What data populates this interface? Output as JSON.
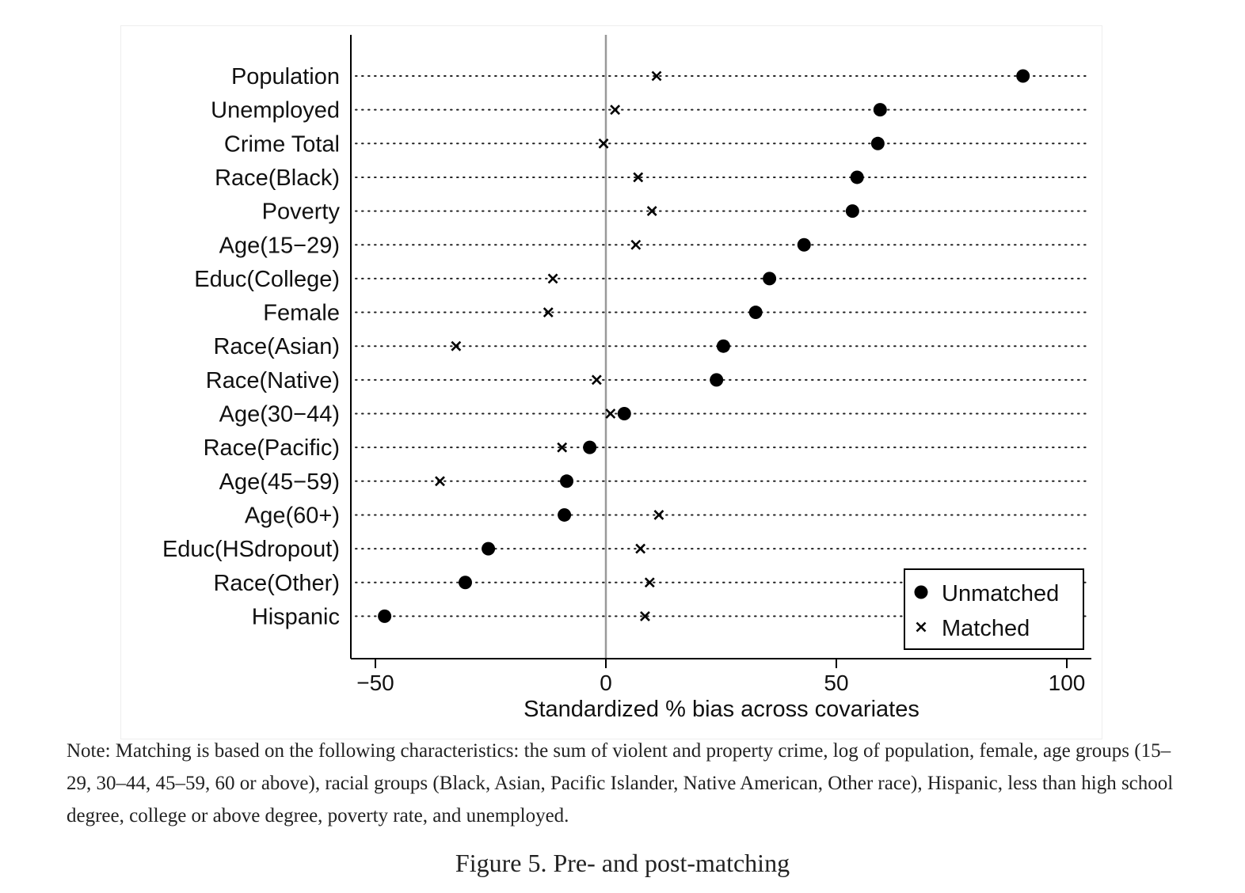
{
  "chart_data": {
    "type": "scatter",
    "categories": [
      "Population",
      "Unemployed",
      "Crime Total",
      "Race(Black)",
      "Poverty",
      "Age(15−29)",
      "Educ(College)",
      "Female",
      "Race(Asian)",
      "Race(Native)",
      "Age(30−44)",
      "Race(Pacific)",
      "Age(45−59)",
      "Age(60+)",
      "Educ(HSdropout)",
      "Race(Other)",
      "Hispanic"
    ],
    "series": [
      {
        "name": "Unmatched",
        "marker": "circle",
        "values": [
          90.5,
          59.5,
          59,
          54.5,
          53.5,
          43,
          35.5,
          32.5,
          25.5,
          24,
          4,
          -3.5,
          -8.5,
          -9,
          -25.5,
          -30.5,
          -48
        ]
      },
      {
        "name": "Matched",
        "marker": "x",
        "values": [
          11,
          2,
          -0.5,
          7,
          10,
          6.5,
          -11.5,
          -12.5,
          -32.5,
          -2,
          1,
          -9.5,
          -36,
          11.5,
          7.5,
          9.5,
          8.5
        ]
      }
    ],
    "xlabel": "Standardized % bias across covariates",
    "xlim": [
      -55.5,
      105
    ],
    "xticks": [
      -50,
      0,
      50,
      100
    ],
    "xtick_labels": [
      "−50",
      "0",
      "50",
      "100"
    ],
    "reference_line_x": 0,
    "grid": "dotted horizontal lines per category",
    "legend_position": "bottom-right",
    "colors": {
      "markers": "#000000",
      "reference_line": "#999999",
      "grid": "#222222"
    }
  },
  "note": "Note: Matching is based on the following characteristics: the sum of violent and property crime, log of population, female, age groups (15–29, 30–44, 45–59, 60 or above), racial groups (Black, Asian, Pacific Islander, Native American, Other race), Hispanic, less than high school degree, college or above degree, poverty rate, and unemployed.",
  "caption": "Figure 5. Pre- and post-matching"
}
